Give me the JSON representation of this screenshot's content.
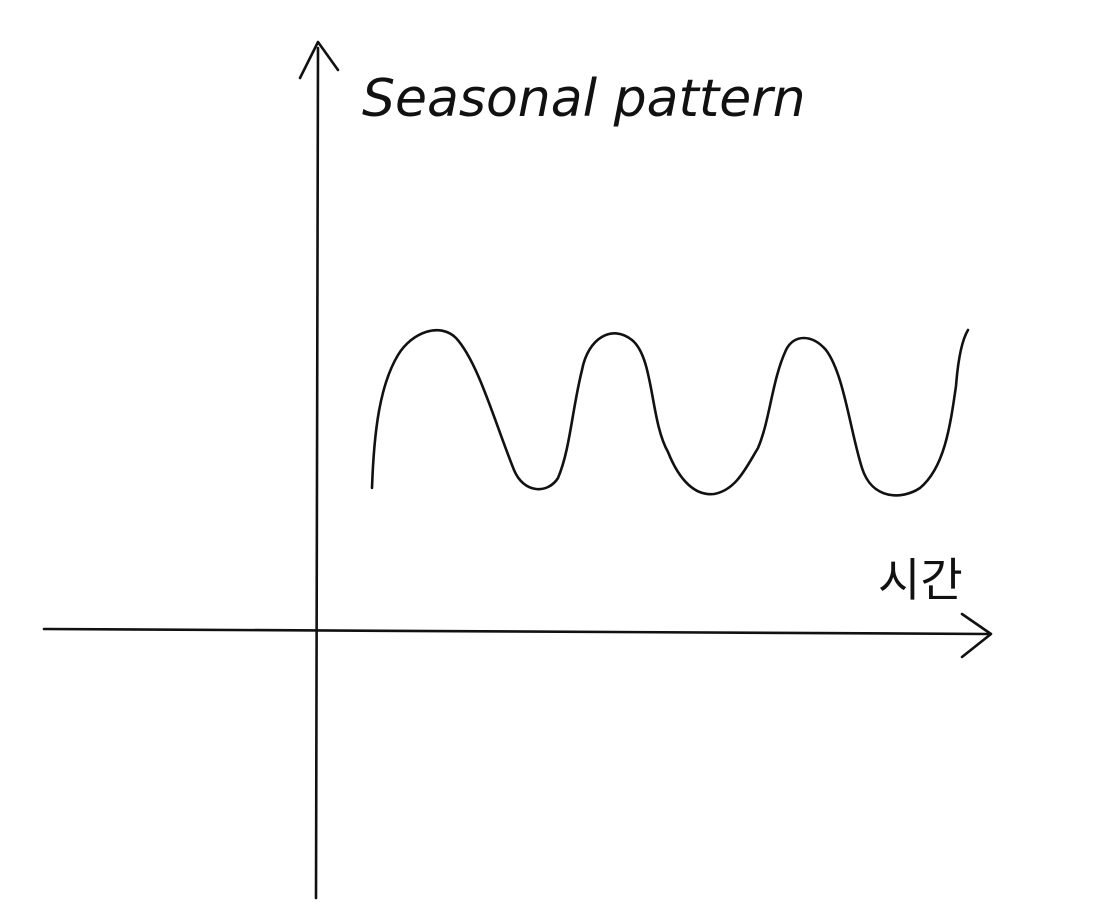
{
  "diagram": {
    "title": "Seasonal pattern",
    "x_axis_label": "시간",
    "curve": {
      "shape": "sine-wave",
      "peaks": 3,
      "troughs": 3
    },
    "colors": {
      "ink": "#111111",
      "background": "#ffffff"
    }
  }
}
